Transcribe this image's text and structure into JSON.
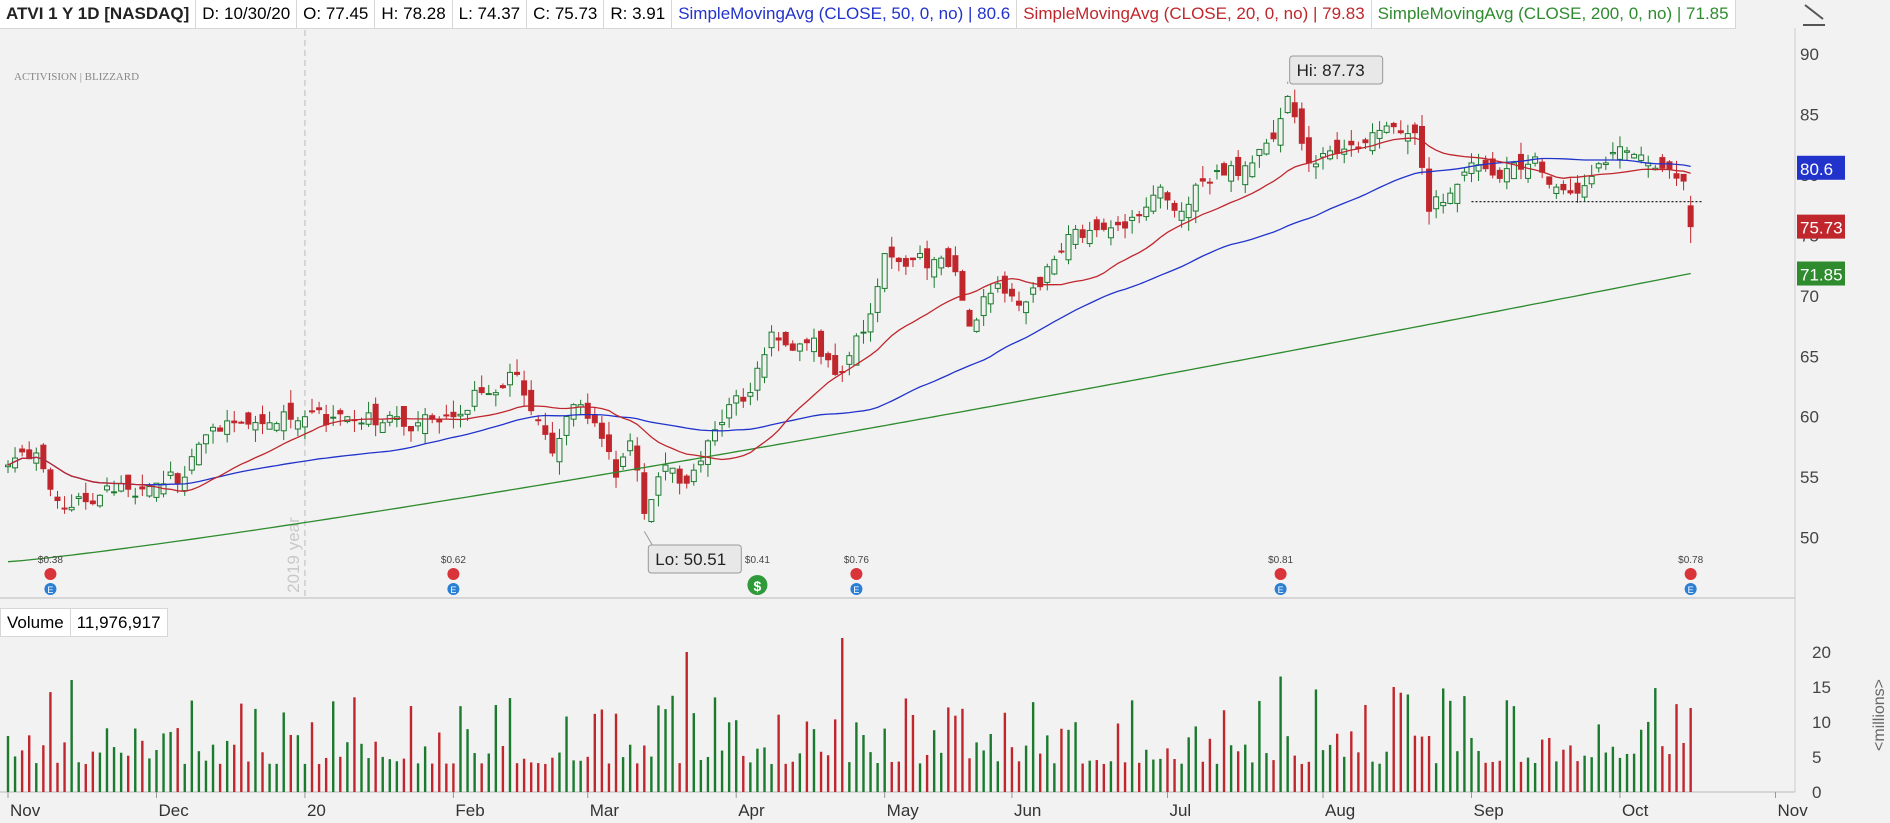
{
  "header": {
    "symbol": "ATVI 1 Y 1D [NASDAQ]",
    "date": "D: 10/30/20",
    "open": "O: 77.45",
    "high": "H: 78.28",
    "low": "L: 74.37",
    "close": "C: 75.73",
    "range": "R: 3.91",
    "sma50_label": "SimpleMovingAvg (CLOSE, 50, 0, no)",
    "sma50_value": "80.6",
    "sma20_label": "SimpleMovingAvg (CLOSE, 20, 0, no)",
    "sma20_value": "79.83",
    "sma200_label": "SimpleMovingAvg (CLOSE, 200, 0, no)",
    "sma200_value": "71.85"
  },
  "volume_header": {
    "label": "Volume",
    "value": "11,976,917"
  },
  "colors": {
    "up": "#1b7a2e",
    "down": "#c0272d",
    "sma50": "#2233cc",
    "sma20": "#c0272d",
    "sma200": "#2e8b2e",
    "background": "#f2f2f2"
  },
  "icons": [
    "activision-blizzard-logo",
    "dividend-icon",
    "earnings-icon",
    "drawing-tool-icon"
  ],
  "chart_data": {
    "type": "candlestick",
    "price_axis": {
      "ylim": [
        45,
        92
      ],
      "ticks": [
        50,
        55,
        60,
        65,
        70,
        75,
        80,
        85,
        90
      ],
      "last_labels": [
        "80.6",
        "75.73",
        "71.85"
      ]
    },
    "volume_axis": {
      "ylim": [
        0,
        22
      ],
      "ticks": [
        0,
        5,
        10,
        15,
        20
      ],
      "unit_label": "<millions>"
    },
    "x_tick_labels": [
      "Nov",
      "Dec",
      "20",
      "Feb",
      "Mar",
      "Apr",
      "May",
      "Jun",
      "Jul",
      "Aug",
      "Sep",
      "Oct",
      "Nov"
    ],
    "x_tick_days": [
      0,
      21,
      42,
      63,
      82,
      103,
      124,
      142,
      164,
      186,
      207,
      228,
      250
    ],
    "year_marker": "2019 year",
    "annotations": {
      "high": "Hi: 87.73",
      "low": "Lo: 50.51",
      "support_level": 77.8
    },
    "dividends": [
      {
        "day": 6,
        "label": "$0.38"
      },
      {
        "day": 63,
        "label": "$0.62"
      },
      {
        "day": 106,
        "label": "$0.41"
      },
      {
        "day": 120,
        "label": "$0.76"
      },
      {
        "day": 180,
        "label": "$0.81"
      },
      {
        "day": 238,
        "label": "$0.78"
      }
    ],
    "close_anchors": [
      [
        0,
        56
      ],
      [
        4,
        57
      ],
      [
        6,
        54
      ],
      [
        9,
        52.5
      ],
      [
        13,
        53.5
      ],
      [
        17,
        54
      ],
      [
        21,
        54.5
      ],
      [
        25,
        55
      ],
      [
        28,
        58.5
      ],
      [
        32,
        59.5
      ],
      [
        37,
        59.5
      ],
      [
        42,
        60
      ],
      [
        48,
        60
      ],
      [
        53,
        59.5
      ],
      [
        58,
        59.5
      ],
      [
        63,
        60
      ],
      [
        67,
        62
      ],
      [
        72,
        63.5
      ],
      [
        74,
        60.5
      ],
      [
        77,
        57
      ],
      [
        80,
        61
      ],
      [
        83,
        59.5
      ],
      [
        86,
        55
      ],
      [
        88,
        58
      ],
      [
        90,
        52
      ],
      [
        93,
        56
      ],
      [
        96,
        54.5
      ],
      [
        99,
        58
      ],
      [
        102,
        61
      ],
      [
        105,
        62
      ],
      [
        108,
        67
      ],
      [
        111,
        65.5
      ],
      [
        114,
        66.5
      ],
      [
        117,
        63.5
      ],
      [
        121,
        67
      ],
      [
        124,
        73.5
      ],
      [
        128,
        73
      ],
      [
        131,
        73
      ],
      [
        134,
        72
      ],
      [
        136,
        67.5
      ],
      [
        140,
        71
      ],
      [
        144,
        69.5
      ],
      [
        148,
        73
      ],
      [
        151,
        75.5
      ],
      [
        155,
        75.5
      ],
      [
        159,
        76.5
      ],
      [
        163,
        79
      ],
      [
        166,
        77
      ],
      [
        169,
        79.5
      ],
      [
        172,
        80
      ],
      [
        176,
        81
      ],
      [
        179,
        83
      ],
      [
        181,
        86.5
      ],
      [
        184,
        81
      ],
      [
        187,
        82
      ],
      [
        190,
        82.5
      ],
      [
        193,
        83.5
      ],
      [
        196,
        84
      ],
      [
        199,
        83.5
      ],
      [
        201,
        77
      ],
      [
        204,
        78.5
      ],
      [
        207,
        81
      ],
      [
        210,
        80
      ],
      [
        213,
        81
      ],
      [
        216,
        81.5
      ],
      [
        219,
        79
      ],
      [
        222,
        78.5
      ],
      [
        226,
        81
      ],
      [
        229,
        82
      ],
      [
        232,
        81
      ],
      [
        235,
        80.5
      ],
      [
        237,
        79.5
      ],
      [
        238,
        75.7
      ]
    ],
    "volume_range": [
      2,
      22
    ],
    "sma20_last": 79.83,
    "sma50_last": 80.6,
    "sma200_last": 71.85
  }
}
